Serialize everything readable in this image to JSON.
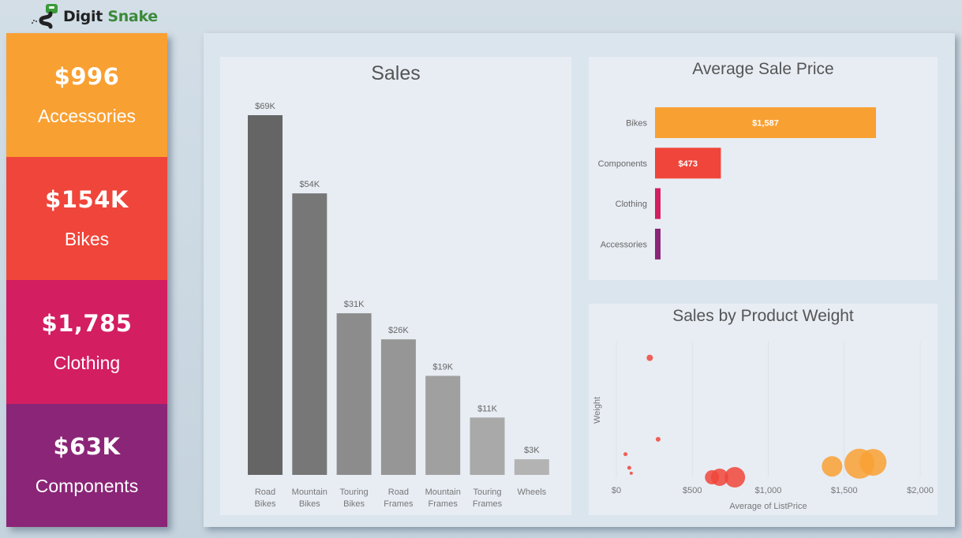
{
  "brand": {
    "word1": "Digit",
    "word2": "Snake",
    "logo_icon": "snake-logo-icon"
  },
  "kpis": [
    {
      "value": "$996",
      "label": "Accessories",
      "color": "#f9a032"
    },
    {
      "value": "$154K",
      "label": "Bikes",
      "color": "#f0453a"
    },
    {
      "value": "$1,785",
      "label": "Clothing",
      "color": "#d31e62"
    },
    {
      "value": "$63K",
      "label": "Components",
      "color": "#8b2577"
    }
  ],
  "panels": {
    "sales_title": "Sales",
    "avg_title": "Average Sale Price",
    "scatter_title": "Sales by Product Weight"
  },
  "chart_data": [
    {
      "type": "bar",
      "title": "Sales",
      "categories": [
        [
          "Road",
          "Bikes"
        ],
        [
          "Mountain",
          "Bikes"
        ],
        [
          "Touring",
          "Bikes"
        ],
        [
          "Road",
          "Frames"
        ],
        [
          "Mountain",
          "Frames"
        ],
        [
          "Touring",
          "Frames"
        ],
        [
          "Wheels"
        ]
      ],
      "values": [
        69,
        54,
        31,
        26,
        19,
        11,
        3
      ],
      "data_labels": [
        "$69K",
        "$54K",
        "$31K",
        "$26K",
        "$19K",
        "$11K",
        "$3K"
      ],
      "units": "thousands USD",
      "colors": [
        "#656565",
        "#777777",
        "#8c8c8c",
        "#969696",
        "#a0a0a0",
        "#a9a9a9",
        "#b3b3b3"
      ],
      "ylim": [
        0,
        69
      ],
      "grid": false
    },
    {
      "type": "bar",
      "orientation": "horizontal",
      "title": "Average Sale Price",
      "categories": [
        "Bikes",
        "Components",
        "Clothing",
        "Accessories"
      ],
      "values": [
        1587,
        473,
        16,
        11
      ],
      "data_labels": [
        "$1,587",
        "$473",
        "",
        ""
      ],
      "colors": [
        "#f9a032",
        "#f0453a",
        "#d31e62",
        "#8b2577"
      ],
      "xlim": [
        0,
        1587
      ],
      "grid": false
    },
    {
      "type": "scatter",
      "title": "Sales by Product Weight",
      "xlabel": "Average of ListPrice",
      "ylabel": "Weight",
      "xlim": [
        0,
        2000
      ],
      "xticks": [
        0,
        500,
        1000,
        1500,
        2000
      ],
      "xtick_labels": [
        "$0",
        "$500",
        "$1,000",
        "$1,500",
        "$2,000"
      ],
      "ylim": [
        0,
        1
      ],
      "grid": true,
      "points": [
        {
          "x": 220,
          "y": 0.88,
          "size": 4,
          "color": "#f0453a"
        },
        {
          "x": 275,
          "y": 0.28,
          "size": 3,
          "color": "#f0453a"
        },
        {
          "x": 60,
          "y": 0.17,
          "size": 2.5,
          "color": "#f0453a"
        },
        {
          "x": 85,
          "y": 0.07,
          "size": 2.5,
          "color": "#f0453a"
        },
        {
          "x": 98,
          "y": 0.03,
          "size": 2,
          "color": "#f0453a"
        },
        {
          "x": 630,
          "y": 0.0,
          "size": 9,
          "color": "#f0453a"
        },
        {
          "x": 680,
          "y": 0.0,
          "size": 11,
          "color": "#f0453a"
        },
        {
          "x": 780,
          "y": 0.0,
          "size": 13,
          "color": "#f0453a"
        },
        {
          "x": 1420,
          "y": 0.08,
          "size": 13,
          "color": "#f9a032"
        },
        {
          "x": 1600,
          "y": 0.1,
          "size": 19,
          "color": "#f9a032"
        },
        {
          "x": 1690,
          "y": 0.11,
          "size": 17,
          "color": "#f9a032"
        }
      ]
    }
  ]
}
